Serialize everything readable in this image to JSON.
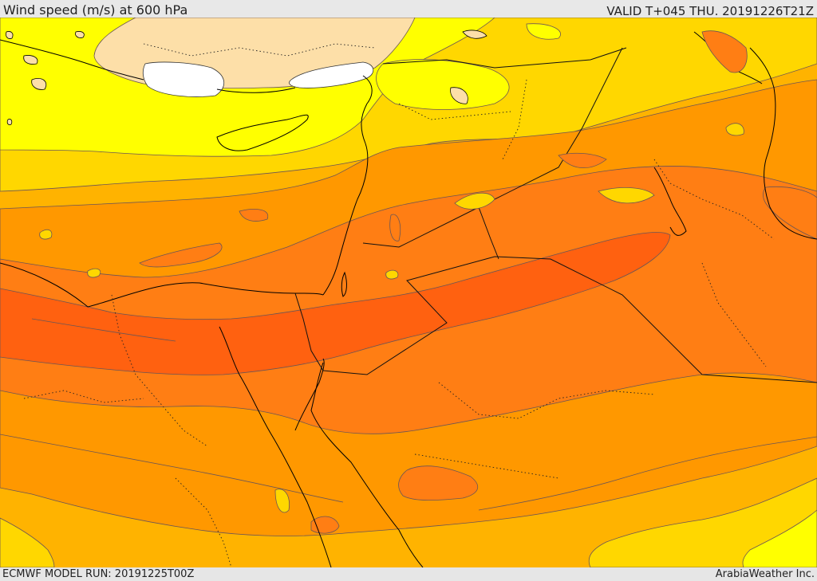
{
  "header": {
    "title": "Wind speed (m/s) at 600 hPa",
    "valid": "VALID T+045 THU. 20191226T21Z"
  },
  "footer": {
    "model_run": "ECMWF MODEL RUN: 20191225T00Z",
    "credit": "ArabiaWeather Inc."
  },
  "colors": {
    "calm": "#ffffff",
    "very_light": "#fddfa8",
    "light": "#ffff00",
    "moderate": "#ffd700",
    "fresh": "#ffb300",
    "strong": "#ff9800",
    "very_strong": "#ff7e14",
    "jet_core": "#ff6110",
    "coastline": "#000000",
    "contour": "#5a4a4a"
  }
}
